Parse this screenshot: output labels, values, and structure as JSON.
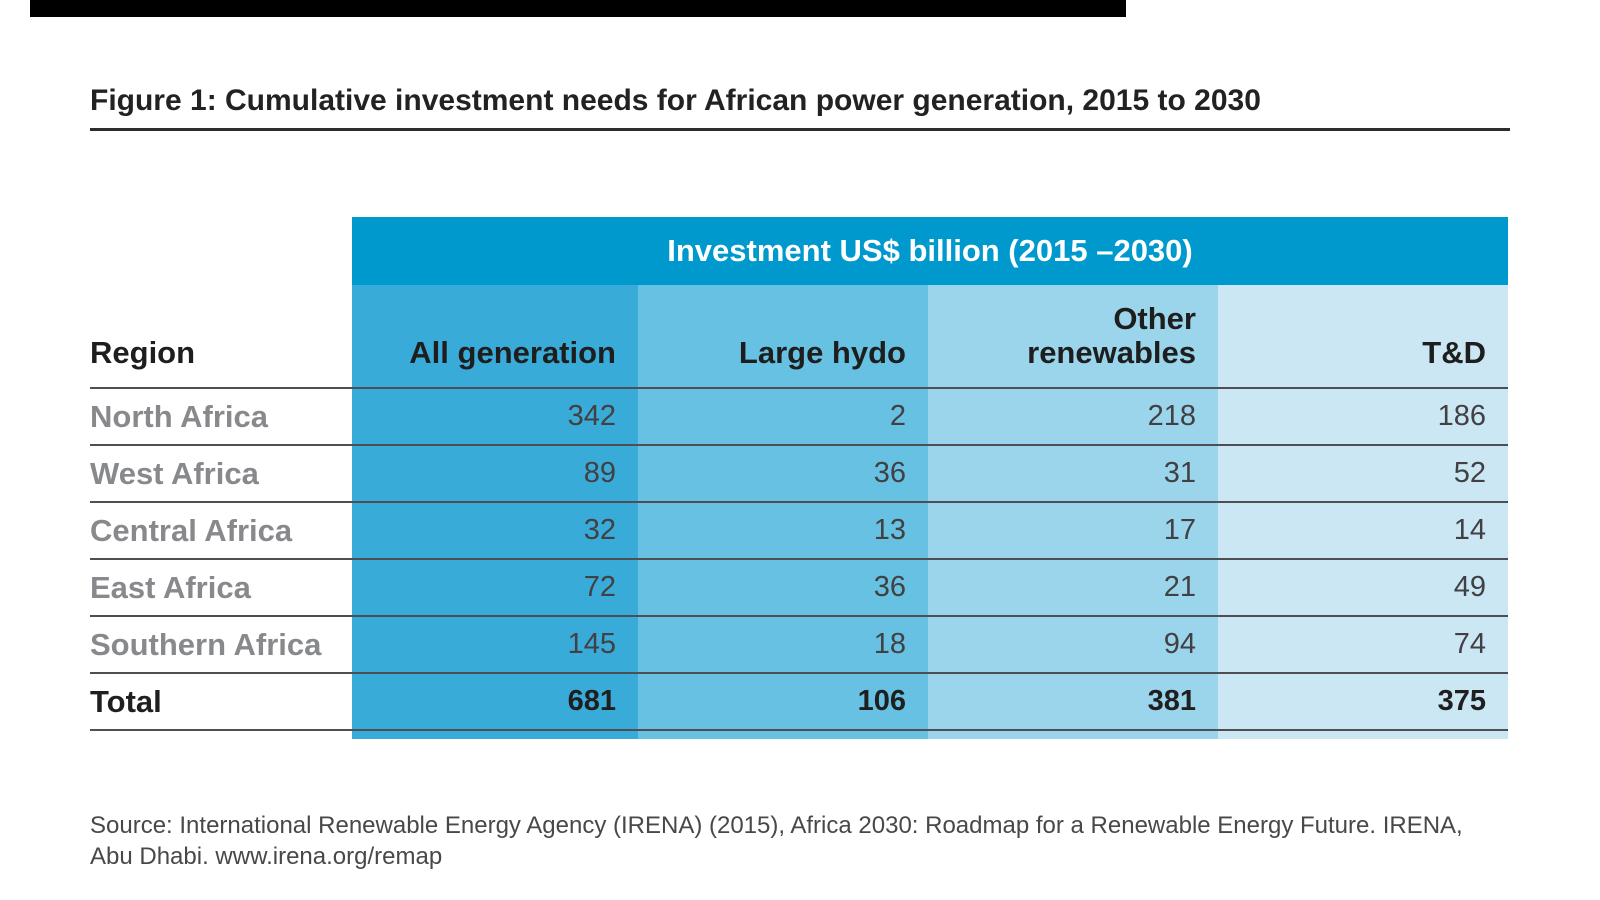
{
  "figure": {
    "title": "Figure 1: Cumulative investment needs for African power generation, 2015 to 2030"
  },
  "table": {
    "group_header": "Investment US$ billion (2015 –2030)",
    "region_header": "Region",
    "columns": [
      "All generation",
      "Large hydo",
      "Other renewables",
      "T&D"
    ],
    "rows": [
      {
        "region": "North Africa",
        "values": [
          "342",
          "2",
          "218",
          "186"
        ]
      },
      {
        "region": "West Africa",
        "values": [
          "89",
          "36",
          "31",
          "52"
        ]
      },
      {
        "region": "Central Africa",
        "values": [
          "32",
          "13",
          "17",
          "14"
        ]
      },
      {
        "region": "East Africa",
        "values": [
          "72",
          "36",
          "21",
          "49"
        ]
      },
      {
        "region": "Southern Africa",
        "values": [
          "145",
          "18",
          "94",
          "74"
        ]
      }
    ],
    "total": {
      "label": "Total",
      "values": [
        "681",
        "106",
        "381",
        "375"
      ]
    }
  },
  "source": {
    "line1": "Source: International Renewable Energy Agency (IRENA) (2015), Africa 2030: Roadmap for a Renewable Energy Future. IRENA,",
    "line2": "Abu Dhabi. www.irena.org/remap"
  },
  "colors": {
    "group_header_bar": "#0099ce",
    "col_all_generation": "#39abd8",
    "col_large_hydo": "#66c1e2",
    "col_other_renewables": "#9bd5eb",
    "col_td": "#cbe7f4",
    "row_line": "#4e4f53",
    "region_label": "#87898c"
  },
  "chart_data": {
    "type": "table",
    "title": "Figure 1: Cumulative investment needs for African power generation, 2015 to 2030",
    "unit_header": "Investment US$ billion (2015 –2030)",
    "columns": [
      "Region",
      "All generation",
      "Large hydo",
      "Other renewables",
      "T&D"
    ],
    "rows": [
      [
        "North Africa",
        342,
        2,
        218,
        186
      ],
      [
        "West Africa",
        89,
        36,
        31,
        52
      ],
      [
        "Central Africa",
        32,
        13,
        17,
        14
      ],
      [
        "East Africa",
        72,
        36,
        21,
        49
      ],
      [
        "Southern Africa",
        145,
        18,
        94,
        74
      ],
      [
        "Total",
        681,
        106,
        381,
        375
      ]
    ]
  }
}
